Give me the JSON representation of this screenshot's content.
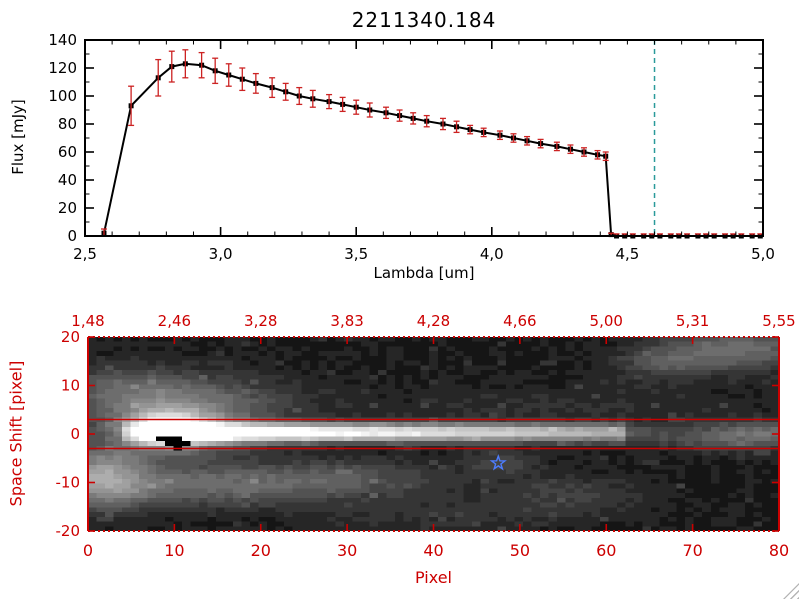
{
  "window": {
    "title": "2211340.184"
  },
  "colors": {
    "axis_black": "#000000",
    "axis_red": "#cc0000",
    "error_red": "#cc2222",
    "teal_line": "#2a9a9a",
    "star_blue": "#4d7dff",
    "background": "#ffffff"
  },
  "chart_data": [
    {
      "type": "line",
      "title": "2211340.184",
      "xlabel": "Lambda [um]",
      "ylabel": "Flux [mJy]",
      "xlim": [
        2.5,
        5.0
      ],
      "ylim": [
        0,
        140
      ],
      "xtick_values": [
        2.5,
        3.0,
        3.5,
        4.0,
        4.5,
        5.0
      ],
      "xtick_labels": [
        "2,5",
        "3,0",
        "3,5",
        "4,0",
        "4,5",
        "5,0"
      ],
      "ytick_values": [
        0,
        20,
        40,
        60,
        80,
        100,
        120,
        140
      ],
      "ytick_labels": [
        "0",
        "20",
        "40",
        "60",
        "80",
        "100",
        "120",
        "140"
      ],
      "marker": "square",
      "line_color": "#000000",
      "error_color": "#cc2222",
      "vline": {
        "x": 4.6,
        "color": "#2a9a9a",
        "style": "dashed"
      },
      "zero_line": {
        "y": 0,
        "color": "#cc2222",
        "style": "dashed"
      },
      "x": [
        2.57,
        2.67,
        2.77,
        2.82,
        2.87,
        2.93,
        2.98,
        3.03,
        3.08,
        3.13,
        3.19,
        3.24,
        3.29,
        3.34,
        3.4,
        3.45,
        3.5,
        3.55,
        3.61,
        3.66,
        3.71,
        3.76,
        3.82,
        3.87,
        3.92,
        3.97,
        4.03,
        4.08,
        4.13,
        4.18,
        4.24,
        4.29,
        4.34,
        4.39,
        4.42,
        4.44,
        4.46,
        4.49,
        4.52,
        4.56,
        4.59,
        4.62,
        4.66,
        4.69,
        4.72,
        4.76,
        4.79,
        4.82,
        4.86,
        4.89,
        4.92,
        4.96,
        4.99
      ],
      "y": [
        2,
        93,
        113,
        121,
        123,
        122,
        118,
        115,
        112,
        109,
        106,
        103,
        100,
        98,
        96,
        94,
        92,
        90,
        88,
        86,
        84,
        82,
        80,
        78,
        76,
        74,
        72,
        70,
        68,
        66,
        64,
        62,
        60,
        58,
        57,
        1,
        0,
        0,
        0,
        0,
        0,
        0,
        0,
        0,
        0,
        0,
        0,
        0,
        0,
        0,
        0,
        0,
        0
      ],
      "yerr": [
        3,
        14,
        13,
        11,
        10,
        9,
        9,
        8,
        8,
        7,
        7,
        6,
        6,
        6,
        5,
        5,
        5,
        5,
        4,
        4,
        4,
        4,
        4,
        4,
        3,
        3,
        3,
        3,
        3,
        3,
        3,
        3,
        3,
        3,
        3,
        1,
        1.5,
        1.5,
        1.5,
        1.5,
        1.5,
        1.5,
        1.5,
        1.5,
        1.5,
        1.5,
        1.5,
        1.5,
        1.5,
        1.5,
        1.5,
        1.5,
        1.5
      ]
    },
    {
      "type": "heatmap",
      "xlabel": "Pixel",
      "ylabel": "Space Shift [pixel]",
      "xlim": [
        0,
        80
      ],
      "ylim": [
        -20,
        20
      ],
      "xtick_values": [
        0,
        10,
        20,
        30,
        40,
        50,
        60,
        70,
        80
      ],
      "xtick_labels": [
        "0",
        "10",
        "20",
        "30",
        "40",
        "50",
        "60",
        "70",
        "80"
      ],
      "ytick_values": [
        -20,
        -10,
        0,
        10,
        20
      ],
      "ytick_labels": [
        "-20",
        "-10",
        "0",
        "10",
        "20"
      ],
      "top_axis_labels": [
        "1,48",
        "2,46",
        "3,28",
        "3,83",
        "4,28",
        "4,66",
        "5,00",
        "5,31",
        "5,55"
      ],
      "aperture_lines_y": [
        3,
        -3
      ],
      "star_marker": {
        "x": 47.5,
        "y": -6
      },
      "trace": {
        "y_center": 0.3,
        "sigma": 1.35,
        "ramp_start": 4,
        "flat_start": 9,
        "flat_end": 13,
        "peak_amp": 1.1,
        "decay_end": 62,
        "end_amp": 0.55,
        "tail_end": 70,
        "tail_amp": 0.18,
        "base_amp": 0.3
      },
      "blobs": [
        {
          "x": 9,
          "y": 1,
          "sx": 3,
          "sy": 2.2,
          "a": 0.85
        },
        {
          "x": 10,
          "y": 2,
          "sx": 6.5,
          "sy": 5,
          "a": 0.33
        },
        {
          "x": 1,
          "y": -9,
          "sx": 4,
          "sy": 4.5,
          "a": 0.42
        },
        {
          "x": 14,
          "y": -11,
          "sx": 12,
          "sy": 3,
          "a": 0.27
        },
        {
          "x": 30,
          "y": -9,
          "sx": 8,
          "sy": 2.5,
          "a": 0.14
        },
        {
          "x": 4,
          "y": 9,
          "sx": 6,
          "sy": 4,
          "a": 0.2
        },
        {
          "x": 16,
          "y": 7,
          "sx": 8,
          "sy": 4,
          "a": 0.12
        },
        {
          "x": 76,
          "y": 18,
          "sx": 6,
          "sy": 3,
          "a": 0.3
        },
        {
          "x": 67,
          "y": 15,
          "sx": 4,
          "sy": 2.5,
          "a": 0.18
        },
        {
          "x": 79,
          "y": 0,
          "sx": 5,
          "sy": 2,
          "a": 0.28
        },
        {
          "x": 71,
          "y": -1,
          "sx": 5,
          "sy": 2,
          "a": 0.13
        },
        {
          "x": 48,
          "y": -6,
          "sx": 3,
          "sy": 2,
          "a": 0.14
        },
        {
          "x": 56,
          "y": -13,
          "sx": 6,
          "sy": 3,
          "a": 0.12
        },
        {
          "x": 40,
          "y": -17,
          "sx": 10,
          "sy": 3,
          "a": 0.08
        },
        {
          "x": 55,
          "y": 6,
          "sx": 15,
          "sy": 3,
          "a": 0.06
        }
      ],
      "masked_pixels": [
        [
          8,
          -1
        ],
        [
          9,
          -1
        ],
        [
          10,
          -1
        ],
        [
          9,
          -2
        ],
        [
          10,
          -2
        ],
        [
          11,
          -2
        ],
        [
          10,
          -3
        ]
      ]
    }
  ]
}
